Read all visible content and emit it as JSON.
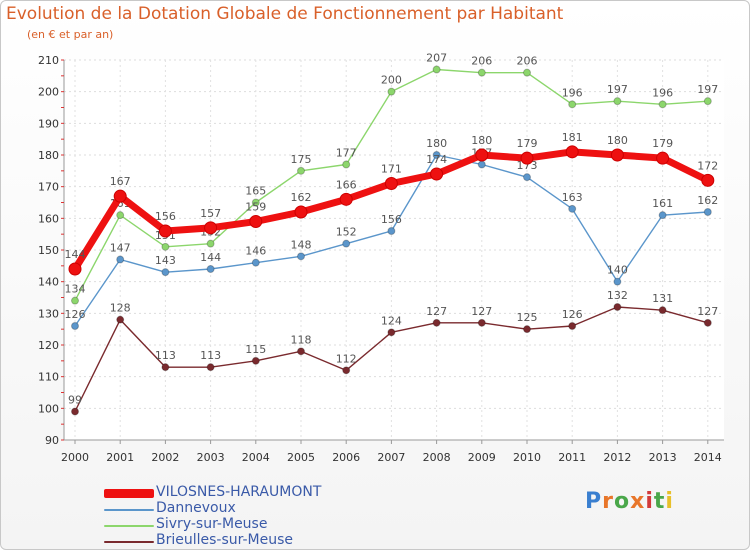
{
  "title": "Evolution de la Dotation Globale de Fonctionnement par Habitant",
  "subtitle": "(en € et par an)",
  "logo": "Proxiti",
  "chart_data": {
    "type": "line",
    "title": "Evolution de la Dotation Globale de Fonctionnement par Habitant",
    "subtitle": "(en € et par an)",
    "xlabel": "",
    "ylabel": "",
    "x": [
      "2000",
      "2001",
      "2002",
      "2003",
      "2004",
      "2005",
      "2006",
      "2007",
      "2008",
      "2009",
      "2010",
      "2011",
      "2012",
      "2013",
      "2014"
    ],
    "yticks": [
      90,
      100,
      110,
      120,
      130,
      140,
      150,
      160,
      170,
      180,
      190,
      200,
      210
    ],
    "ylim": [
      90,
      210
    ],
    "grid": true,
    "legend_position": "bottom-left",
    "series": [
      {
        "name": "Sivry-sur-Meuse",
        "color": "#8cd66c",
        "values": [
          134,
          161,
          151,
          152,
          165,
          175,
          177,
          200,
          207,
          206,
          206,
          196,
          197,
          196,
          197
        ]
      },
      {
        "name": "Dannevoux",
        "color": "#5b96cb",
        "values": [
          126,
          147,
          143,
          144,
          146,
          148,
          152,
          156,
          180,
          177,
          173,
          163,
          140,
          161,
          162
        ]
      },
      {
        "name": "Brieulles-sur-Meuse",
        "color": "#7a2a2e",
        "values": [
          99,
          128,
          113,
          113,
          115,
          118,
          112,
          124,
          127,
          127,
          125,
          126,
          132,
          131,
          127
        ]
      },
      {
        "name": "VILOSNES-HARAUMONT",
        "color": "#ee1111",
        "values": [
          144,
          167,
          156,
          157,
          159,
          162,
          166,
          171,
          174,
          180,
          179,
          181,
          180,
          179,
          172
        ]
      }
    ],
    "legend_order": [
      "VILOSNES-HARAUMONT",
      "Dannevoux",
      "Sivry-sur-Meuse",
      "Brieulles-sur-Meuse"
    ]
  }
}
